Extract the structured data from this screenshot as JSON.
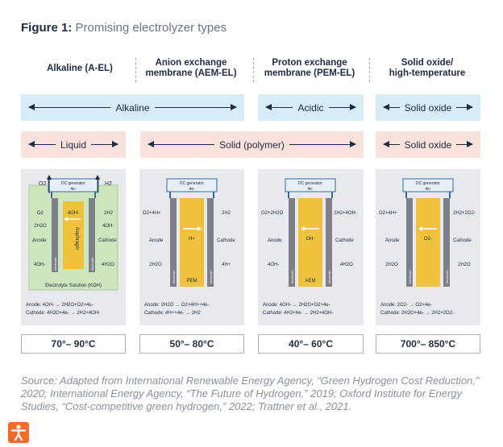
{
  "figure": {
    "label": "Figure 1:",
    "title": "Promising electrolyzer types"
  },
  "columns": [
    {
      "heading_line1": "Alkaline (A-EL)",
      "heading_line2": ""
    },
    {
      "heading_line1": "Anion exchange",
      "heading_line2": "membrane (AEM-EL)"
    },
    {
      "heading_line1": "Proton exchange",
      "heading_line2": "membrane (PEM-EL)"
    },
    {
      "heading_line1": "Solid oxide/",
      "heading_line2": "high-temperature"
    }
  ],
  "medium_row": {
    "alkaline": "Alkaline",
    "acidic": "Acidic",
    "solid_oxide": "Solid oxide"
  },
  "electrolyte_row": {
    "liquid": "Liquid",
    "solid_polymer": "Solid (polymer)",
    "solid_oxide": "Solid oxide"
  },
  "cells": {
    "common": {
      "dc_generator": "DC generator",
      "electrons": "4e-",
      "anode": "Anode",
      "cathode": "Cathode",
      "electrode": "electrode"
    },
    "alkaline": {
      "o2_out": "O2",
      "h2_out": "H2",
      "left_top": "O2",
      "left_mid": "2H2O",
      "left_bottom": "4OH-",
      "right_top": "2H2",
      "right_mid": "4OH-",
      "right_bottom": "4H2O",
      "center_ion": "4OH-",
      "separator": "diaphragm",
      "electrolyte": "Electrolyte Solution (KOH)",
      "anode_eq": "Anode: 4OH- → 2H2O+O2+4e-",
      "cathode_eq": "Cathode: 4H2O+4e- → 2H2+4OH-"
    },
    "aem": {
      "left_top": "O2+4H+",
      "left_bottom": "2H2O",
      "right_top": "2H2",
      "right_bottom": "4H+",
      "center_ion": "H+",
      "membrane": "PEM",
      "anode_eq": "Anode: 2H2O → O2+4H++4e-",
      "cathode_eq": "Cathode: 4H++4e- → 2H2"
    },
    "pem": {
      "left_top": "O2+2H2O",
      "left_bottom": "4OH-",
      "right_top": "2H2+4OH-",
      "right_bottom": "4H2O",
      "center_ion": "OH-",
      "membrane": "AEM",
      "anode_eq": "Anode: 4OH- → 2H2O+O2+4e-",
      "cathode_eq": "Cathode: 4H2+4e- → 2H2+4OH-"
    },
    "solid_oxide": {
      "left_top": "O2+4H+",
      "left_bottom": "2H2O",
      "right_top": "2H2+2O2-",
      "right_bottom": "2H2O",
      "center_ion": "O2-",
      "anode_eq": "Anode: 2O2- → O2+4e-",
      "cathode_eq": "Cathode: 2H2O+4e- → 2H2+2O2-"
    }
  },
  "temperatures": [
    "70°– 90°C",
    "50°– 80°C",
    "40°– 60°C",
    "700°– 850°C"
  ],
  "source": "Source: Adapted from International Renewable Energy Agency, “Green Hydrogen Cost Reduction,” 2020; International Energy Agency, “The Future of Hydrogen,”  2019; Oxford Institute for Energy Studies, “Cost-competitive green hydrogen,” 2022; Trattner et al., 2021.",
  "colors": {
    "navy": "#1f2a44",
    "alkaline_band": "#d8ecf7",
    "electrolyte_band": "#f9e2dc",
    "membrane_yellow": "#f0c23b",
    "alkaline_bath": "#cfe5bd",
    "electrode_gray": "#7d8088",
    "arrow_blue": "#2f6ea3",
    "badge_orange": "#f26a2c"
  }
}
